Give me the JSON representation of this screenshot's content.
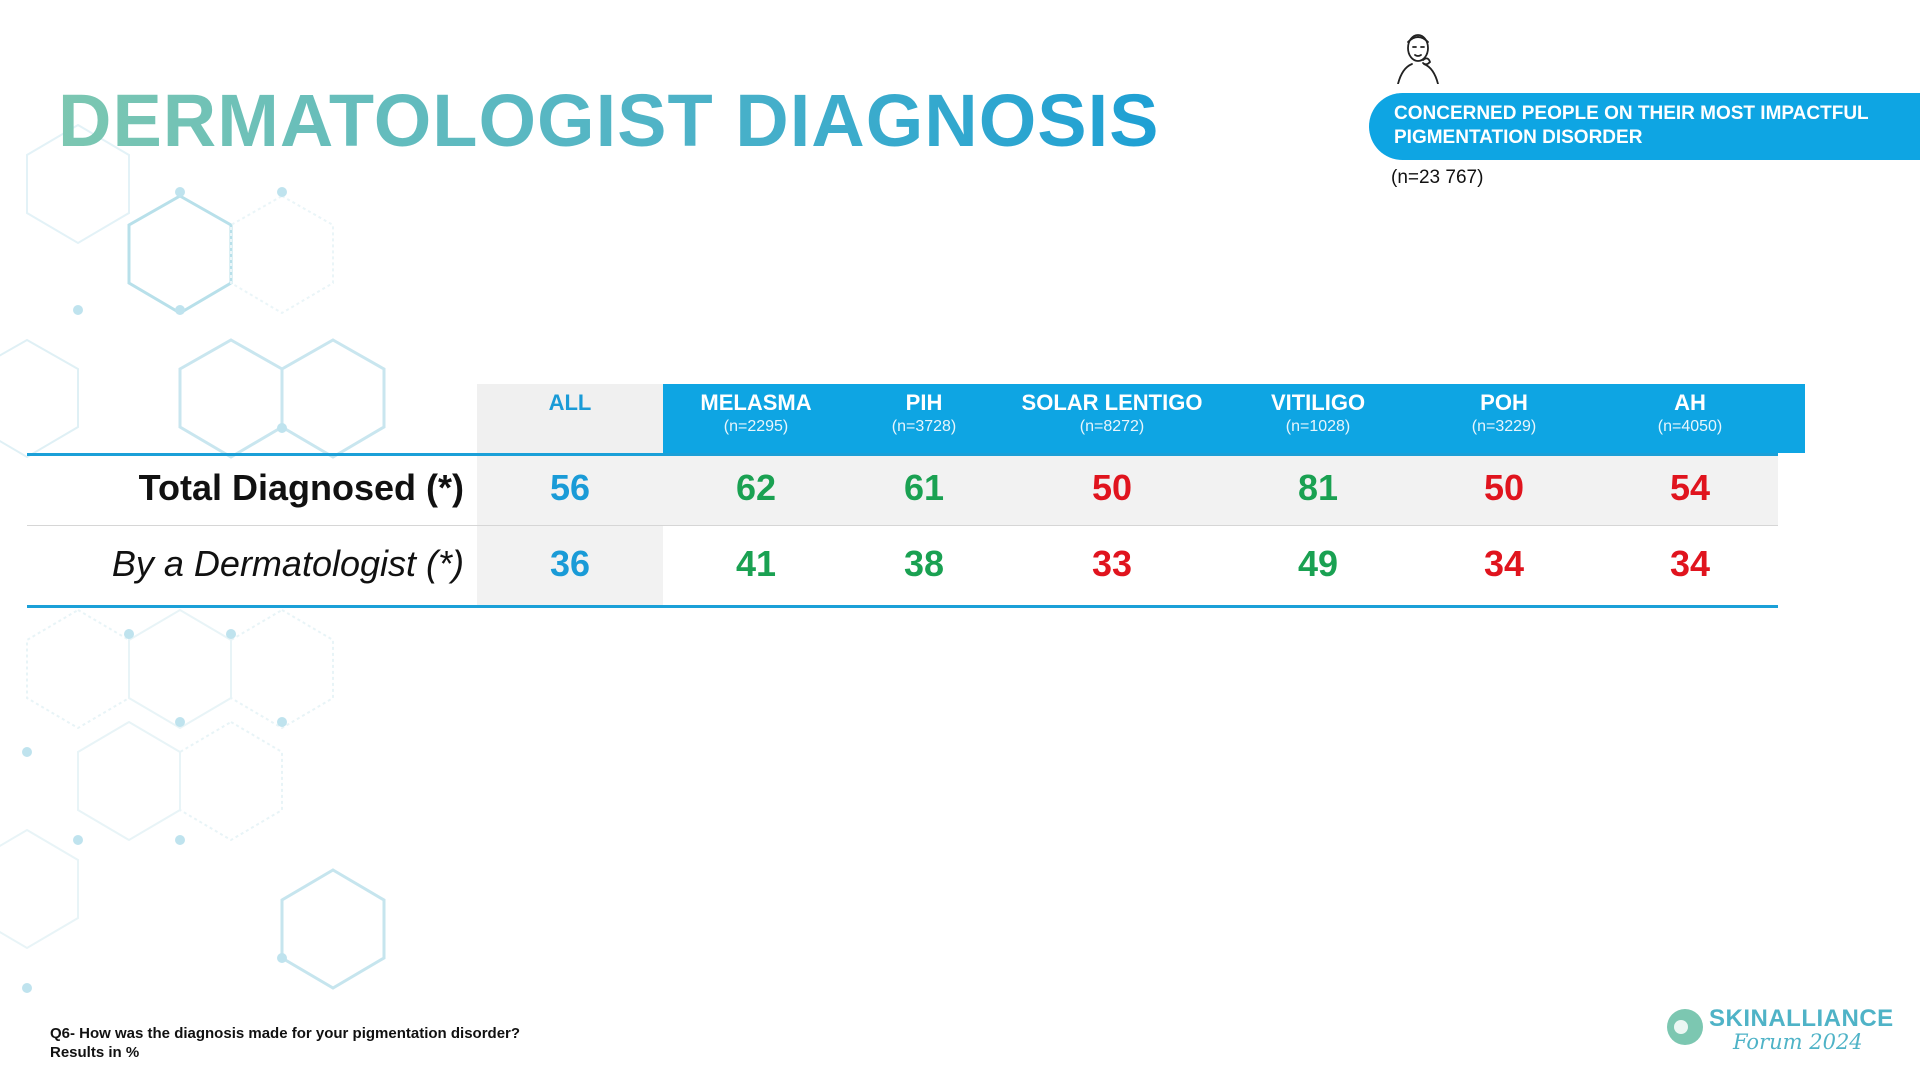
{
  "title": "DERMATOLOGIST DIAGNOSIS",
  "banner": {
    "text": "CONCERNED PEOPLE ON THEIR MOST IMPACTFUL PIGMENTATION DISORDER",
    "sample": "(n=23 767)",
    "icon": "person-face-icon"
  },
  "table": {
    "columns": [
      {
        "name": "ALL",
        "n": ""
      },
      {
        "name": "MELASMA",
        "n": "(n=2295)"
      },
      {
        "name": "PIH",
        "n": "(n=3728)"
      },
      {
        "name": "SOLAR LENTIGO",
        "n": "(n=8272)"
      },
      {
        "name": "VITILIGO",
        "n": "(n=1028)"
      },
      {
        "name": "POH",
        "n": "(n=3229)"
      },
      {
        "name": "AH",
        "n": "(n=4050)"
      }
    ],
    "rows": [
      {
        "label": "Total Diagnosed (*)",
        "values": [
          "56",
          "62",
          "61",
          "50",
          "81",
          "50",
          "54"
        ]
      },
      {
        "label": "By a Dermatologist (*)",
        "values": [
          "36",
          "41",
          "38",
          "33",
          "49",
          "34",
          "34"
        ]
      }
    ]
  },
  "colors": {
    "all": "#1a9bd7",
    "higher": "#1aa152",
    "lower": "#e0141e",
    "header_blue": "#0ea5e3"
  },
  "value_colors": [
    [
      "all",
      "higher",
      "higher",
      "lower",
      "higher",
      "lower",
      "lower"
    ],
    [
      "all",
      "higher",
      "higher",
      "lower",
      "higher",
      "lower",
      "lower"
    ]
  ],
  "footnote": {
    "line1": "Q6- How was the diagnosis made for your pigmentation disorder?",
    "line2": "Results in %"
  },
  "logo": {
    "name": "SKINALLIANCE",
    "sub": "Forum 2024"
  }
}
